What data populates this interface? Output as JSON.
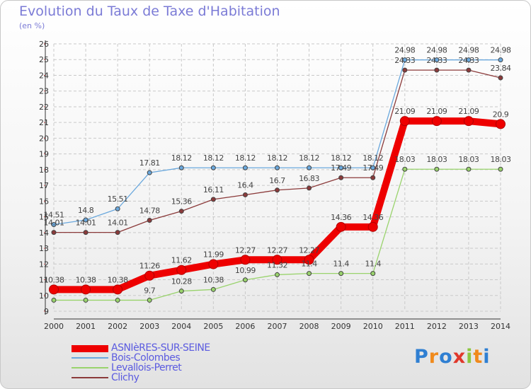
{
  "header": {
    "title": "Evolution du Taux de Taxe d'Habitation",
    "unit": "(en %)"
  },
  "logo": {
    "text": "Proxiti",
    "colors": [
      "#2f7fd2",
      "#f08a1c",
      "#2f7fd2",
      "#e0382b",
      "#8cc63f",
      "#f08a1c",
      "#2f7fd2"
    ]
  },
  "chart_data": {
    "type": "line",
    "title": "Evolution du Taux de Taxe d'Habitation",
    "ylabel": "(en %)",
    "xlabel": "",
    "x": [
      "2000",
      "2001",
      "2002",
      "2003",
      "2004",
      "2005",
      "2006",
      "2007",
      "2008",
      "2009",
      "2010",
      "2011",
      "2012",
      "2013",
      "2014"
    ],
    "ylim": [
      9,
      26
    ],
    "yticks": [
      9,
      10,
      11,
      12,
      13,
      14,
      15,
      16,
      17,
      18,
      19,
      20,
      21,
      22,
      23,
      24,
      25,
      26
    ],
    "grid": true,
    "legend_position": "bottom-left",
    "series": [
      {
        "name": "ASNIèRES-SUR-SEINE",
        "color": "#ee0000",
        "values": [
          10.38,
          10.38,
          10.38,
          11.26,
          11.62,
          11.99,
          12.27,
          12.27,
          12.27,
          14.36,
          14.36,
          21.09,
          21.09,
          21.09,
          20.9
        ],
        "labels": [
          "10.38",
          "10.38",
          "10.38",
          "11.26",
          "11.62",
          "11.99",
          "12.27",
          "12.27",
          "12.27",
          "14.36",
          "14.36",
          "21.09",
          "21.09",
          "21.09",
          "20.9"
        ]
      },
      {
        "name": "Bois-Colombes",
        "color": "#6aa8dd",
        "values": [
          14.51,
          14.8,
          15.51,
          17.81,
          18.12,
          18.12,
          18.12,
          18.12,
          18.12,
          18.12,
          18.12,
          24.98,
          24.98,
          24.98,
          24.98
        ],
        "labels": [
          "14.51",
          "14.8",
          "15.51",
          "17.81",
          "18.12",
          "18.12",
          "18.12",
          "18.12",
          "18.12",
          "18.12",
          "18.12",
          "24.98",
          "24.98",
          "24.98",
          "24.98"
        ]
      },
      {
        "name": "Levallois-Perret",
        "color": "#99d36c",
        "values": [
          9.7,
          9.7,
          9.7,
          9.7,
          10.28,
          10.38,
          10.99,
          11.32,
          11.4,
          11.4,
          11.4,
          18.03,
          18.03,
          18.03,
          18.03
        ],
        "labels": [
          "",
          "",
          "",
          "9.7",
          "10.28",
          "10.38",
          "10.99",
          "11.32",
          "11.4",
          "11.4",
          "11.4",
          "18.03",
          "18.03",
          "18.03",
          "18.03"
        ]
      },
      {
        "name": "Clichy",
        "color": "#8b3a3a",
        "values": [
          14.01,
          14.01,
          14.01,
          14.78,
          15.36,
          16.11,
          16.4,
          16.7,
          16.83,
          17.49,
          17.49,
          24.33,
          24.33,
          24.33,
          23.84
        ],
        "labels": [
          "14.01",
          "14.01",
          "14.01",
          "14.78",
          "15.36",
          "16.11",
          "16.4",
          "16.7",
          "16.83",
          "17.49",
          "17.49",
          "24.33",
          "24.33",
          "24.33",
          "23.84"
        ]
      }
    ]
  }
}
